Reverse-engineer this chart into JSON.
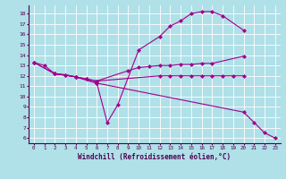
{
  "xlabel": "Windchill (Refroidissement éolien,°C)",
  "bg_color": "#b0e0e8",
  "line_color": "#a0008c",
  "grid_color": "#ffffff",
  "xlim": [
    -0.5,
    23.5
  ],
  "ylim": [
    5.5,
    18.8
  ],
  "xticks": [
    0,
    1,
    2,
    3,
    4,
    5,
    6,
    7,
    8,
    9,
    10,
    11,
    12,
    13,
    14,
    15,
    16,
    17,
    18,
    19,
    20,
    21,
    22,
    23
  ],
  "yticks": [
    6,
    7,
    8,
    9,
    10,
    11,
    12,
    13,
    14,
    15,
    16,
    17,
    18
  ],
  "series": [
    {
      "x": [
        0,
        2,
        4,
        6,
        7,
        8,
        10,
        12,
        13,
        14,
        15,
        16,
        17,
        18,
        20
      ],
      "y": [
        13.3,
        12.2,
        11.9,
        11.3,
        7.5,
        9.2,
        14.5,
        15.8,
        16.8,
        17.3,
        18.0,
        18.2,
        18.2,
        17.8,
        16.4
      ]
    },
    {
      "x": [
        0,
        1,
        2,
        3,
        4,
        5,
        6,
        9,
        10,
        11,
        12,
        13,
        14,
        15,
        16,
        17,
        20
      ],
      "y": [
        13.3,
        13.0,
        12.2,
        12.1,
        11.9,
        11.7,
        11.5,
        12.5,
        12.8,
        12.9,
        13.0,
        13.0,
        13.1,
        13.1,
        13.2,
        13.2,
        13.9
      ]
    },
    {
      "x": [
        2,
        3,
        4,
        5,
        6,
        12,
        13,
        14,
        15,
        16,
        17,
        18,
        19,
        20
      ],
      "y": [
        12.2,
        12.1,
        11.9,
        11.7,
        11.5,
        12.0,
        12.0,
        12.0,
        12.0,
        12.0,
        12.0,
        12.0,
        12.0,
        12.0
      ]
    },
    {
      "x": [
        0,
        2,
        4,
        6,
        20,
        21,
        22,
        23
      ],
      "y": [
        13.3,
        12.2,
        11.9,
        11.3,
        8.5,
        7.5,
        6.5,
        6.0
      ]
    }
  ]
}
